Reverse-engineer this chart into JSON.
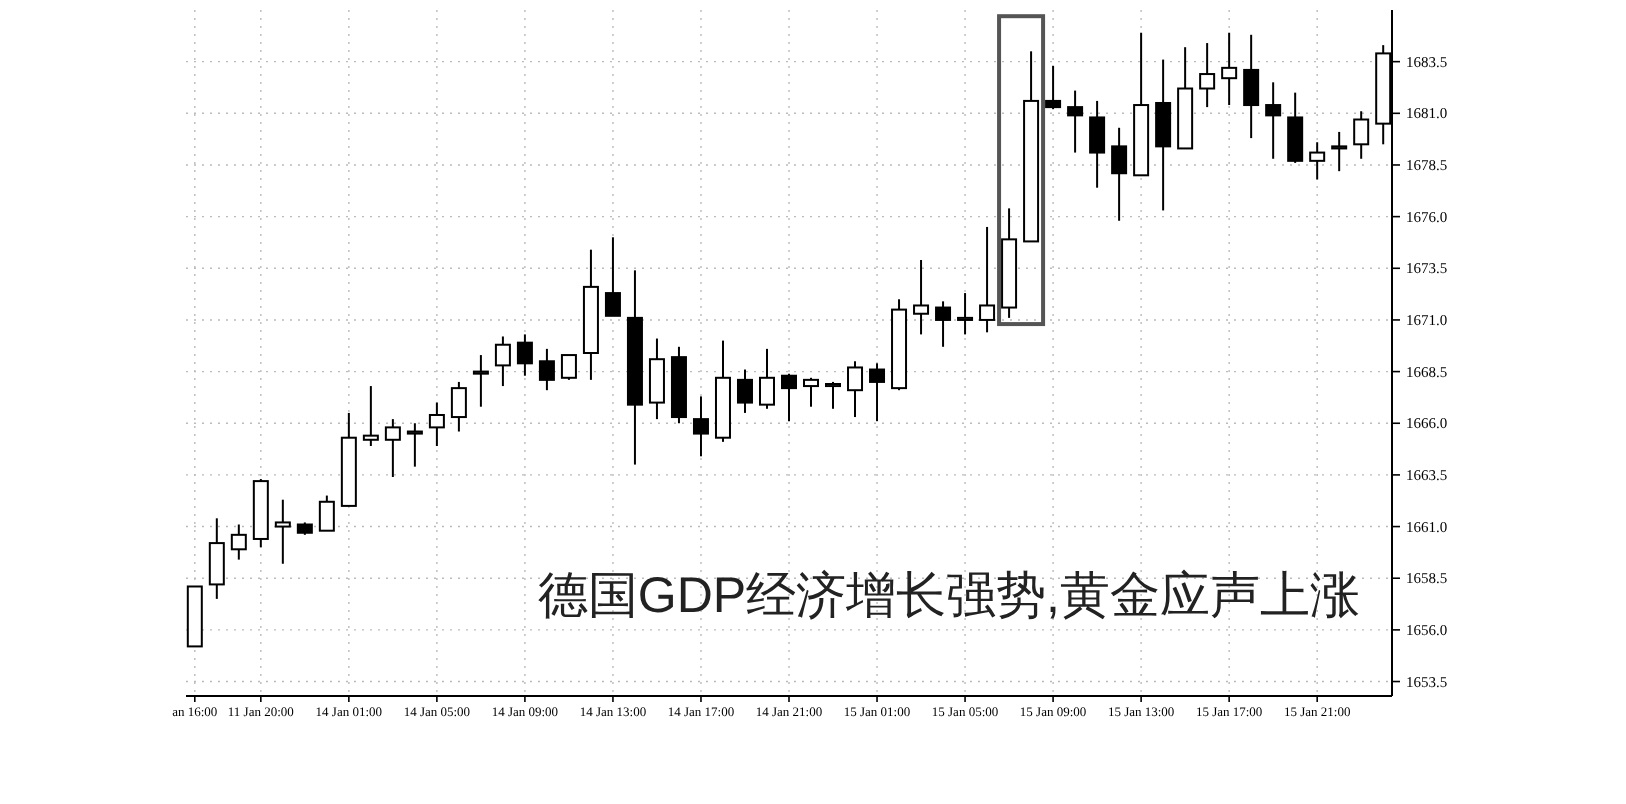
{
  "chart_data": {
    "type": "candlestick",
    "categories": [
      "an 16:00",
      null,
      null,
      "11 Jan 20:00",
      null,
      null,
      null,
      "14 Jan 01:00",
      null,
      null,
      null,
      "14 Jan 05:00",
      null,
      null,
      null,
      "14 Jan 09:00",
      null,
      null,
      null,
      "14 Jan 13:00",
      null,
      null,
      null,
      "14 Jan 17:00",
      null,
      null,
      null,
      "14 Jan 21:00",
      null,
      null,
      null,
      "15 Jan 01:00",
      null,
      null,
      null,
      "15 Jan 05:00",
      null,
      null,
      null,
      "15 Jan 09:00",
      null,
      null,
      null,
      "15 Jan 13:00",
      null,
      null,
      null,
      "15 Jan 17:00",
      null,
      null,
      null,
      "15 Jan 21:00",
      null,
      null,
      null
    ],
    "ohlc": [
      [
        1655.2,
        1658.1,
        1655.2,
        1658.1
      ],
      [
        1658.2,
        1661.4,
        1657.5,
        1660.2
      ],
      [
        1659.9,
        1661.1,
        1659.4,
        1660.6
      ],
      [
        1660.4,
        1663.3,
        1660.0,
        1663.2
      ],
      [
        1661.0,
        1662.3,
        1659.2,
        1661.2
      ],
      [
        1661.1,
        1661.2,
        1660.6,
        1660.7
      ],
      [
        1660.8,
        1662.5,
        1660.8,
        1662.2
      ],
      [
        1662.0,
        1666.5,
        1662.0,
        1665.3
      ],
      [
        1665.2,
        1667.8,
        1664.9,
        1665.4
      ],
      [
        1665.2,
        1666.2,
        1663.4,
        1665.8
      ],
      [
        1665.5,
        1666.0,
        1663.9,
        1665.6
      ],
      [
        1665.8,
        1667.0,
        1664.9,
        1666.4
      ],
      [
        1666.3,
        1668.0,
        1665.6,
        1667.7
      ],
      [
        1668.4,
        1669.3,
        1666.8,
        1668.5
      ],
      [
        1668.8,
        1670.2,
        1667.8,
        1669.8
      ],
      [
        1669.9,
        1670.3,
        1668.3,
        1668.9
      ],
      [
        1669.0,
        1669.6,
        1667.6,
        1668.1
      ],
      [
        1668.2,
        1669.3,
        1668.1,
        1669.3
      ],
      [
        1669.4,
        1674.4,
        1668.1,
        1672.6
      ],
      [
        1672.3,
        1675.0,
        1671.2,
        1671.2
      ],
      [
        1671.1,
        1673.4,
        1664.0,
        1666.9
      ],
      [
        1667.0,
        1670.1,
        1666.2,
        1669.1
      ],
      [
        1669.2,
        1669.7,
        1666.0,
        1666.3
      ],
      [
        1666.2,
        1667.3,
        1664.4,
        1665.5
      ],
      [
        1665.3,
        1670.0,
        1665.1,
        1668.2
      ],
      [
        1668.1,
        1668.6,
        1666.5,
        1667.0
      ],
      [
        1666.9,
        1669.6,
        1666.7,
        1668.2
      ],
      [
        1668.3,
        1668.4,
        1666.1,
        1667.7
      ],
      [
        1667.8,
        1668.2,
        1666.8,
        1668.1
      ],
      [
        1667.8,
        1668.0,
        1666.7,
        1667.9
      ],
      [
        1667.6,
        1669.0,
        1666.3,
        1668.7
      ],
      [
        1668.6,
        1668.9,
        1666.1,
        1668.0
      ],
      [
        1667.7,
        1672.0,
        1667.6,
        1671.5
      ],
      [
        1671.3,
        1673.9,
        1670.3,
        1671.7
      ],
      [
        1671.6,
        1671.9,
        1669.7,
        1671.0
      ],
      [
        1671.0,
        1672.3,
        1670.3,
        1671.1
      ],
      [
        1671.0,
        1675.5,
        1670.4,
        1671.7
      ],
      [
        1671.6,
        1676.4,
        1671.1,
        1674.9
      ],
      [
        1674.8,
        1684.0,
        1674.8,
        1681.6
      ],
      [
        1681.6,
        1683.3,
        1681.2,
        1681.3
      ],
      [
        1681.3,
        1682.1,
        1679.1,
        1680.9
      ],
      [
        1680.8,
        1681.6,
        1677.4,
        1679.1
      ],
      [
        1679.4,
        1680.3,
        1675.8,
        1678.1
      ],
      [
        1678.0,
        1684.9,
        1678.0,
        1681.4
      ],
      [
        1681.5,
        1683.6,
        1676.3,
        1679.4
      ],
      [
        1679.3,
        1684.2,
        1679.3,
        1682.2
      ],
      [
        1682.2,
        1684.4,
        1681.3,
        1682.9
      ],
      [
        1682.7,
        1684.9,
        1681.4,
        1683.2
      ],
      [
        1683.1,
        1684.8,
        1679.8,
        1681.4
      ],
      [
        1681.4,
        1682.5,
        1678.8,
        1680.9
      ],
      [
        1680.8,
        1682.0,
        1678.6,
        1678.7
      ],
      [
        1678.7,
        1679.6,
        1677.8,
        1679.1
      ],
      [
        1679.3,
        1680.1,
        1678.2,
        1679.4
      ],
      [
        1679.5,
        1681.1,
        1678.8,
        1680.7
      ],
      [
        1680.5,
        1684.3,
        1679.5,
        1683.9
      ]
    ],
    "ylim": [
      1652.8,
      1686.0
    ],
    "yticks": [
      {
        "value": 1653.5,
        "label": "1653.5"
      },
      {
        "value": 1656.0,
        "label": "1656.0"
      },
      {
        "value": 1658.5,
        "label": "1658.5"
      },
      {
        "value": 1661.0,
        "label": "1661.0"
      },
      {
        "value": 1663.5,
        "label": "1663.5"
      },
      {
        "value": 1666.0,
        "label": "1666.0"
      },
      {
        "value": 1668.5,
        "label": "1668.5"
      },
      {
        "value": 1671.0,
        "label": "1671.0"
      },
      {
        "value": 1673.5,
        "label": "1673.5"
      },
      {
        "value": 1676.0,
        "label": "1676.0"
      },
      {
        "value": 1678.5,
        "label": "1678.5"
      },
      {
        "value": 1681.0,
        "label": "1681.0"
      },
      {
        "value": 1683.5,
        "label": "1683.5"
      }
    ],
    "grid": true,
    "annotations": [
      "德国GDP经济增长强势,黄金应声上涨"
    ]
  }
}
